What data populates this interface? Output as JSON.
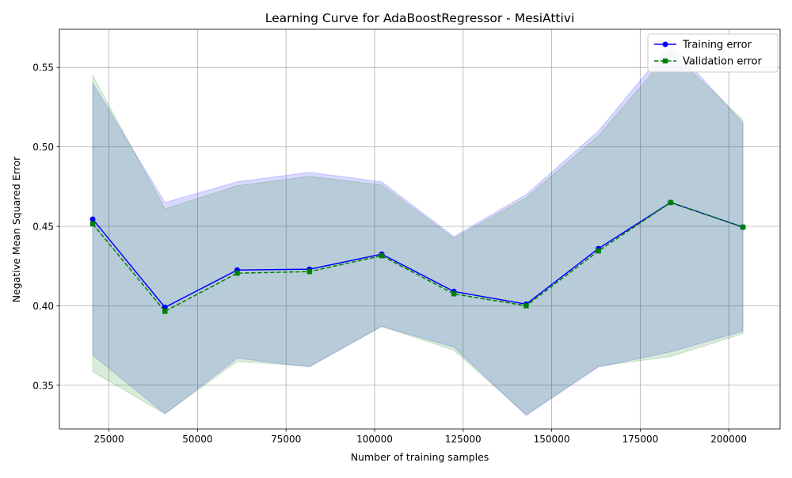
{
  "chart_data": {
    "type": "line",
    "title": "Learning Curve for AdaBoostRegressor - MesiAttivi",
    "xlabel": "Number of training samples",
    "ylabel": "Negative Mean Squared Error",
    "xlim": [
      11000,
      214500
    ],
    "ylim": [
      0.3225,
      0.574
    ],
    "xticks": [
      25000,
      50000,
      75000,
      100000,
      125000,
      150000,
      175000,
      200000
    ],
    "xtick_labels": [
      "25000",
      "50000",
      "75000",
      "100000",
      "125000",
      "150000",
      "175000",
      "200000"
    ],
    "yticks": [
      0.35,
      0.4,
      0.45,
      0.5,
      0.55
    ],
    "ytick_labels": [
      "0.35",
      "0.40",
      "0.45",
      "0.50",
      "0.55"
    ],
    "grid": true,
    "legend_position": "upper right",
    "x": [
      20400,
      40800,
      61200,
      81600,
      102000,
      122400,
      142800,
      163200,
      183600,
      204000
    ],
    "series": [
      {
        "name": "Training error",
        "color": "#0000ff",
        "marker": "circle",
        "linestyle": "solid",
        "values": [
          0.4545,
          0.399,
          0.4225,
          0.423,
          0.4325,
          0.409,
          0.401,
          0.436,
          0.465,
          0.4495
        ],
        "band_upper": [
          0.54,
          0.465,
          0.478,
          0.484,
          0.478,
          0.4435,
          0.47,
          0.51,
          0.565,
          0.515
        ],
        "band_lower": [
          0.369,
          0.332,
          0.367,
          0.3615,
          0.387,
          0.374,
          0.331,
          0.3615,
          0.371,
          0.384
        ],
        "band_color": "#0000ff"
      },
      {
        "name": "Validation error",
        "color": "#008000",
        "marker": "square",
        "linestyle": "dashed",
        "values": [
          0.4515,
          0.3965,
          0.4205,
          0.4215,
          0.4315,
          0.4075,
          0.4,
          0.4345,
          0.465,
          0.4495
        ],
        "band_upper": [
          0.545,
          0.461,
          0.4755,
          0.4815,
          0.476,
          0.4425,
          0.468,
          0.507,
          0.56,
          0.517
        ],
        "band_lower": [
          0.3585,
          0.332,
          0.365,
          0.362,
          0.387,
          0.372,
          0.3315,
          0.362,
          0.368,
          0.3825
        ],
        "band_color": "#008000"
      }
    ]
  }
}
